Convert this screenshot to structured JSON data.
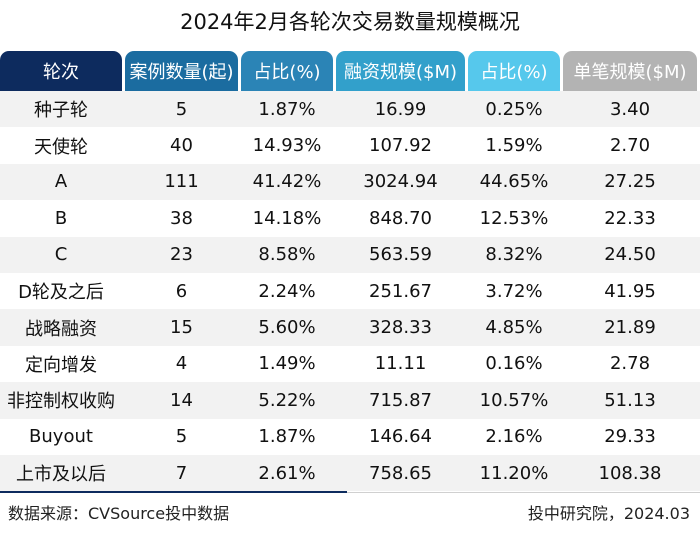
{
  "chart_data": {
    "type": "table",
    "title": "2024年2月各轮次交易数量规模概况",
    "columns": [
      {
        "label": "轮次",
        "color": "#0d2b5e"
      },
      {
        "label": "案例数量(起)",
        "color": "#1b6ca0"
      },
      {
        "label": "占比(%)",
        "color": "#2b84b6"
      },
      {
        "label": "融资规模($M)",
        "color": "#32a0cb"
      },
      {
        "label": "占比(%)",
        "color": "#56c8ec"
      },
      {
        "label": "单笔规模($M)",
        "color": "#b3b3b3"
      }
    ],
    "rows": [
      [
        "种子轮",
        "5",
        "1.87%",
        "16.99",
        "0.25%",
        "3.40"
      ],
      [
        "天使轮",
        "40",
        "14.93%",
        "107.92",
        "1.59%",
        "2.70"
      ],
      [
        "A",
        "111",
        "41.42%",
        "3024.94",
        "44.65%",
        "27.25"
      ],
      [
        "B",
        "38",
        "14.18%",
        "848.70",
        "12.53%",
        "22.33"
      ],
      [
        "C",
        "23",
        "8.58%",
        "563.59",
        "8.32%",
        "24.50"
      ],
      [
        "D轮及之后",
        "6",
        "2.24%",
        "251.67",
        "3.72%",
        "41.95"
      ],
      [
        "战略融资",
        "15",
        "5.60%",
        "328.33",
        "4.85%",
        "21.89"
      ],
      [
        "定向增发",
        "4",
        "1.49%",
        "11.11",
        "0.16%",
        "2.78"
      ],
      [
        "非控制权收购",
        "14",
        "5.22%",
        "715.87",
        "10.57%",
        "51.13"
      ],
      [
        "Buyout",
        "5",
        "1.87%",
        "146.64",
        "2.16%",
        "29.33"
      ],
      [
        "上市及以后",
        "7",
        "2.61%",
        "758.65",
        "11.20%",
        "108.38"
      ]
    ],
    "row_stripe_color": "#f2f2f2"
  },
  "footer": {
    "source": "数据来源：CVSource投中数据",
    "credit": "投中研究院，2024.03"
  }
}
